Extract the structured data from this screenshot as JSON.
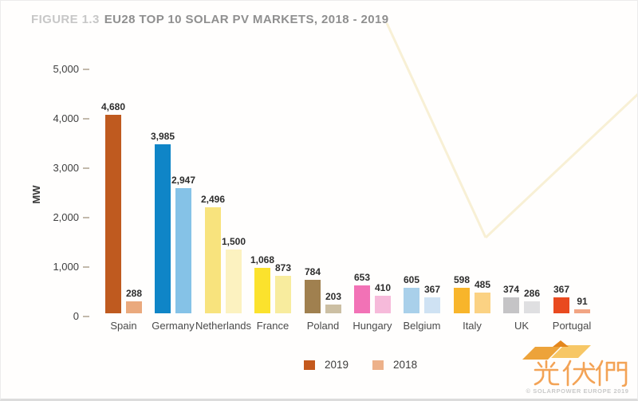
{
  "title": {
    "prefix": "FIGURE 1.3",
    "text": "EU28 TOP 10 SOLAR PV MARKETS, 2018 - 2019"
  },
  "chart_data": {
    "type": "bar",
    "title": "EU28 TOP 10 SOLAR PV MARKETS, 2018 - 2019",
    "xlabel": "",
    "ylabel": "MW",
    "ylim": [
      0,
      5000
    ],
    "ytick_labels": [
      "5,000",
      "4,000",
      "3,000",
      "2,000",
      "1,000",
      "0"
    ],
    "grid": "off",
    "legend_position": "bottom-center",
    "categories": [
      "Spain",
      "Germany",
      "Netherlands",
      "France",
      "Poland",
      "Hungary",
      "Belgium",
      "Italy",
      "UK",
      "Portugal"
    ],
    "series": [
      {
        "name": "2019",
        "values": [
          4680,
          3985,
          2496,
          1068,
          784,
          653,
          605,
          598,
          374,
          367
        ],
        "value_labels": [
          "4,680",
          "3,985",
          "2,496",
          "1,068",
          "784",
          "653",
          "605",
          "598",
          "374",
          "367"
        ],
        "colors": [
          "#bf5a1f",
          "#0f85c7",
          "#f8e37d",
          "#fbe22d",
          "#a0804f",
          "#f272b6",
          "#a9d0ea",
          "#f8b52b",
          "#c5c4c6",
          "#e94a1f"
        ]
      },
      {
        "name": "2018",
        "values": [
          288,
          2947,
          1500,
          873,
          203,
          410,
          367,
          485,
          286,
          91
        ],
        "value_labels": [
          "288",
          "2,947",
          "1,500",
          "873",
          "203",
          "410",
          "367",
          "485",
          "286",
          "91"
        ],
        "colors": [
          "#eaa97d",
          "#85c2e7",
          "#fcf2c0",
          "#f8ec9e",
          "#ccbfa3",
          "#f6bada",
          "#cfe2f3",
          "#fbd283",
          "#dfdfe1",
          "#f2a583"
        ]
      }
    ],
    "legend": [
      {
        "label": "2019",
        "color": "#c4591d"
      },
      {
        "label": "2018",
        "color": "#edb18a"
      }
    ]
  },
  "footer": {
    "watermark_text": "光伏們",
    "copyright": "© SOLARPOWER EUROPE 2019"
  }
}
